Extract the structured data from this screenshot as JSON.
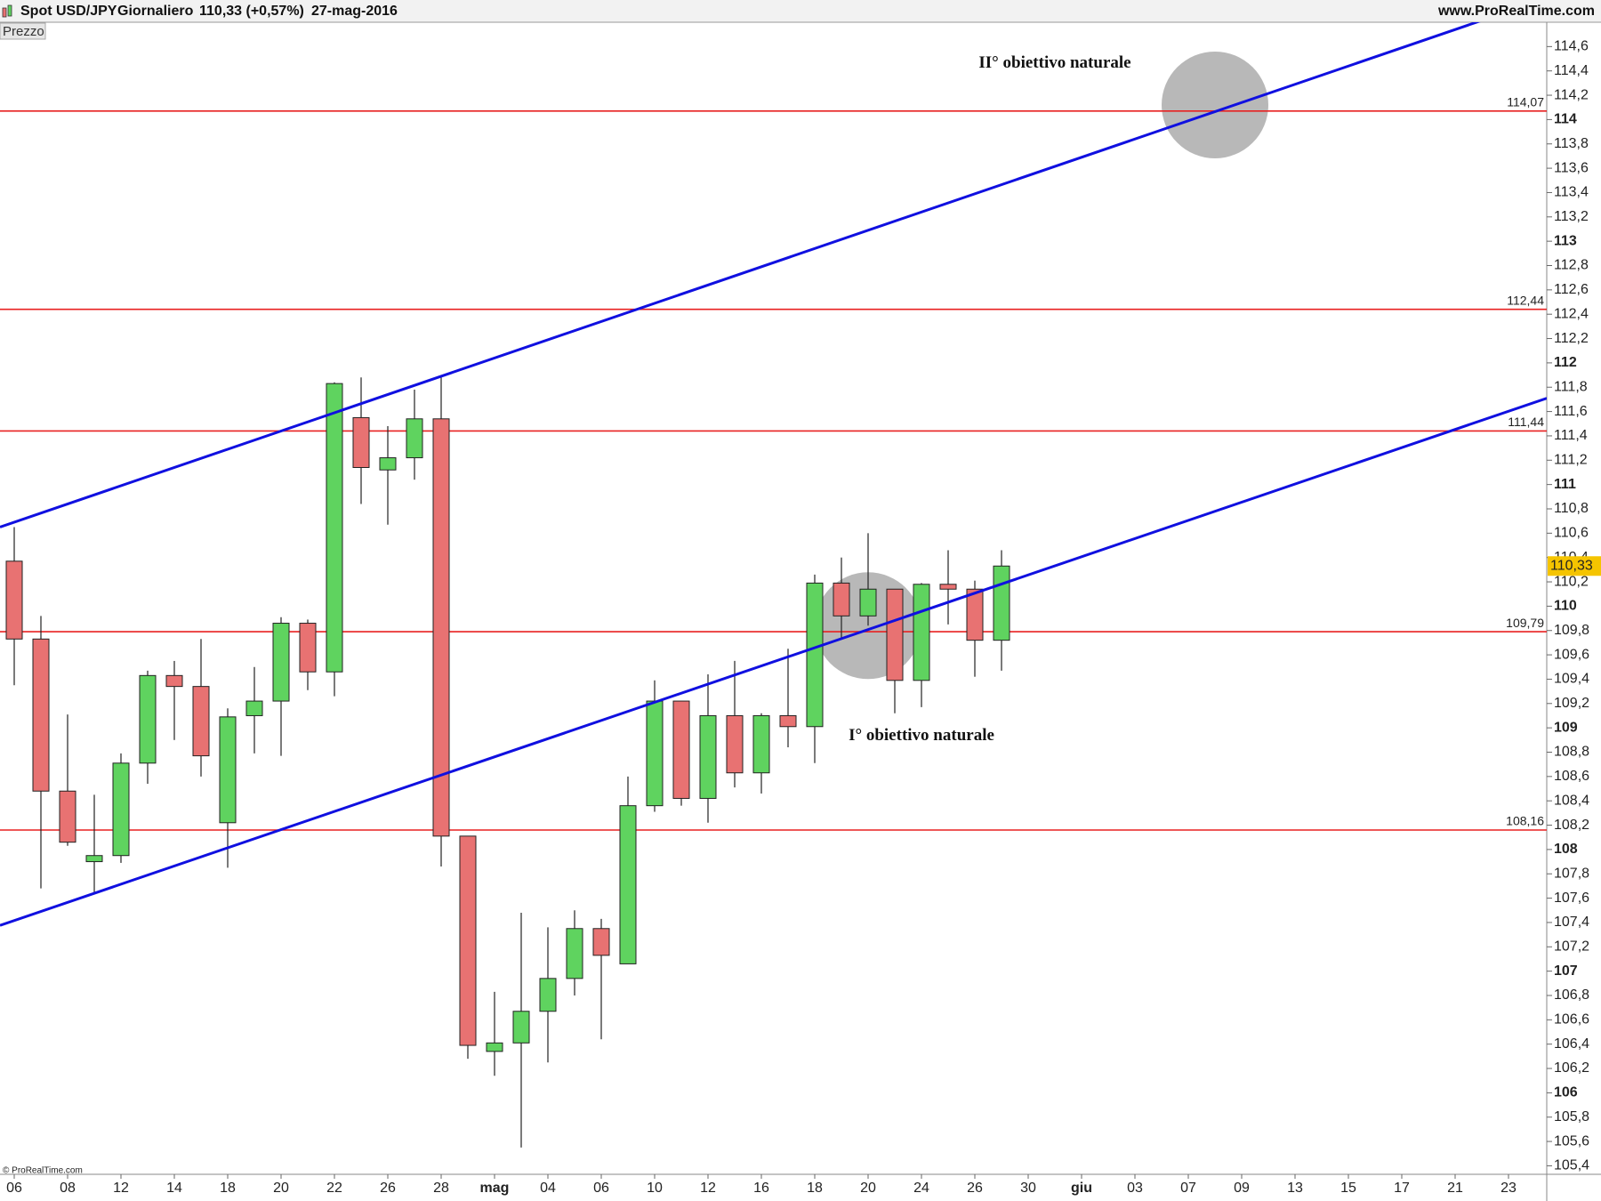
{
  "header": {
    "symbol": "Spot USD/JPY",
    "period": "Giornaliero",
    "quote": "110,33 (+0,57%)",
    "date": "27-mag-2016",
    "site": "www.ProRealTime.com"
  },
  "panel_label": "Prezzo",
  "copyright": "© ProRealTime.com",
  "chart_data": {
    "type": "candlestick",
    "categories": [
      "06",
      null,
      "08",
      null,
      "12",
      null,
      "14",
      null,
      "18",
      null,
      "20",
      null,
      "22",
      null,
      "26",
      null,
      "28",
      null,
      "mag",
      null,
      "04",
      null,
      "06",
      null,
      "10",
      null,
      "12",
      null,
      "16",
      null,
      "18",
      null,
      "20",
      null,
      "24",
      null,
      "26",
      null,
      "30",
      null,
      "giu",
      null,
      "03",
      null,
      "07",
      null,
      "09",
      null,
      "13",
      null,
      "15",
      null,
      "17",
      null,
      "21",
      null,
      "23"
    ],
    "open": [
      110.37,
      109.73,
      108.48,
      107.9,
      107.95,
      108.71,
      109.43,
      109.34,
      108.22,
      109.1,
      109.22,
      109.86,
      109.46,
      111.55,
      111.12,
      111.22,
      111.54,
      108.11,
      106.34,
      106.41,
      106.67,
      106.94,
      107.35,
      107.06,
      108.36,
      109.22,
      108.42,
      109.1,
      108.63,
      109.1,
      109.01,
      110.19,
      109.92,
      110.14,
      109.39,
      110.18,
      110.14,
      109.72,
      null,
      null,
      null,
      null,
      null,
      null,
      null,
      null,
      null,
      null,
      null,
      null,
      null,
      null,
      null,
      null,
      null,
      null,
      null
    ],
    "high": [
      110.65,
      109.92,
      109.11,
      108.45,
      108.79,
      109.47,
      109.55,
      109.73,
      109.16,
      109.5,
      109.91,
      109.89,
      111.84,
      111.88,
      111.48,
      111.78,
      111.89,
      108.11,
      106.83,
      107.48,
      107.36,
      107.5,
      107.43,
      108.6,
      109.39,
      109.22,
      109.44,
      109.55,
      109.12,
      109.65,
      110.26,
      110.4,
      110.6,
      110.14,
      110.19,
      110.46,
      110.21,
      110.46,
      null,
      null,
      null,
      null,
      null,
      null,
      null,
      null,
      null,
      null,
      null,
      null,
      null,
      null,
      null,
      null,
      null,
      null,
      null
    ],
    "low": [
      109.35,
      107.68,
      108.03,
      107.64,
      107.89,
      108.54,
      108.9,
      108.6,
      107.85,
      108.79,
      108.77,
      109.31,
      109.26,
      110.84,
      110.67,
      111.04,
      107.86,
      106.28,
      106.14,
      105.55,
      106.25,
      106.8,
      106.44,
      107.06,
      108.31,
      108.36,
      108.22,
      108.51,
      108.46,
      108.84,
      108.71,
      109.73,
      109.84,
      109.12,
      109.17,
      109.85,
      109.42,
      109.47,
      null,
      null,
      null,
      null,
      null,
      null,
      null,
      null,
      null,
      null,
      null,
      null,
      null,
      null,
      null,
      null,
      null,
      null,
      null
    ],
    "close": [
      109.73,
      108.48,
      108.06,
      107.95,
      108.71,
      109.43,
      109.34,
      108.77,
      109.09,
      109.22,
      109.86,
      109.46,
      111.83,
      111.14,
      111.22,
      111.54,
      108.11,
      106.39,
      106.41,
      106.67,
      106.94,
      107.35,
      107.13,
      108.36,
      109.22,
      108.42,
      109.1,
      108.63,
      109.1,
      109.01,
      110.19,
      109.92,
      110.14,
      109.39,
      110.18,
      110.14,
      109.72,
      110.33,
      null,
      null,
      null,
      null,
      null,
      null,
      null,
      null,
      null,
      null,
      null,
      null,
      null,
      null,
      null,
      null,
      null,
      null,
      null
    ],
    "up_color": "#5fd35f",
    "down_color": "#e87272",
    "ylim": [
      105.33,
      114.8
    ],
    "yticks": [
      {
        "value": 105.4,
        "label": "105,4"
      },
      {
        "value": 105.6,
        "label": "105,6"
      },
      {
        "value": 105.8,
        "label": "105,8"
      },
      106,
      {
        "value": 106.2,
        "label": "106,2"
      },
      {
        "value": 106.4,
        "label": "106,4"
      },
      {
        "value": 106.6,
        "label": "106,6"
      },
      {
        "value": 106.8,
        "label": "106,8"
      },
      107,
      {
        "value": 107.2,
        "label": "107,2"
      },
      {
        "value": 107.4,
        "label": "107,4"
      },
      {
        "value": 107.6,
        "label": "107,6"
      },
      {
        "value": 107.8,
        "label": "107,8"
      },
      108,
      {
        "value": 108.2,
        "label": "108,2"
      },
      {
        "value": 108.4,
        "label": "108,4"
      },
      {
        "value": 108.6,
        "label": "108,6"
      },
      {
        "value": 108.8,
        "label": "108,8"
      },
      109,
      {
        "value": 109.2,
        "label": "109,2"
      },
      {
        "value": 109.4,
        "label": "109,4"
      },
      {
        "value": 109.6,
        "label": "109,6"
      },
      {
        "value": 109.8,
        "label": "109,8"
      },
      110,
      {
        "value": 110.2,
        "label": "110,2"
      },
      {
        "value": 110.4,
        "label": "110,4"
      },
      {
        "value": 110.6,
        "label": "110,6"
      },
      {
        "value": 110.8,
        "label": "110,8"
      },
      111,
      {
        "value": 111.2,
        "label": "111,2"
      },
      {
        "value": 111.4,
        "label": "111,4"
      },
      {
        "value": 111.6,
        "label": "111,6"
      },
      {
        "value": 111.8,
        "label": "111,8"
      },
      112,
      {
        "value": 112.2,
        "label": "112,2"
      },
      {
        "value": 112.4,
        "label": "112,4"
      },
      {
        "value": 112.6,
        "label": "112,6"
      },
      {
        "value": 112.8,
        "label": "112,8"
      },
      113,
      {
        "value": 113.2,
        "label": "113,2"
      },
      {
        "value": 113.4,
        "label": "113,4"
      },
      {
        "value": 113.6,
        "label": "113,6"
      },
      {
        "value": 113.8,
        "label": "113,8"
      },
      114,
      {
        "value": 114.2,
        "label": "114,2"
      },
      {
        "value": 114.4,
        "label": "114,4"
      },
      {
        "value": 114.6,
        "label": "114,6"
      }
    ],
    "levels": [
      {
        "value": 114.07,
        "label": "114,07"
      },
      {
        "value": 112.44,
        "label": "112,44"
      },
      {
        "value": 111.44,
        "label": "111,44"
      },
      {
        "value": 109.79,
        "label": "109,79"
      },
      {
        "value": 108.16,
        "label": "108,16"
      }
    ],
    "level_color": "#e82020",
    "trendlines": [
      {
        "x": [
          0,
          16
        ],
        "y": [
          110.69,
          111.89
        ]
      },
      {
        "x": [
          3,
          24
        ],
        "y": [
          107.64,
          109.21
        ]
      }
    ],
    "trendline_color": "#1010e0",
    "targets": [
      {
        "x": 32,
        "y": 109.84
      },
      {
        "x": 45,
        "y": 114.12
      }
    ],
    "target_color": "#a0a0a0",
    "annotations": [
      {
        "text": "II° obiettivo naturale",
        "x": 39,
        "y": 114.46
      },
      {
        "text": "I° obiettivo naturale",
        "x": 34,
        "y": 108.93
      }
    ],
    "last_price": {
      "value": 110.33,
      "label": "110,33"
    }
  }
}
